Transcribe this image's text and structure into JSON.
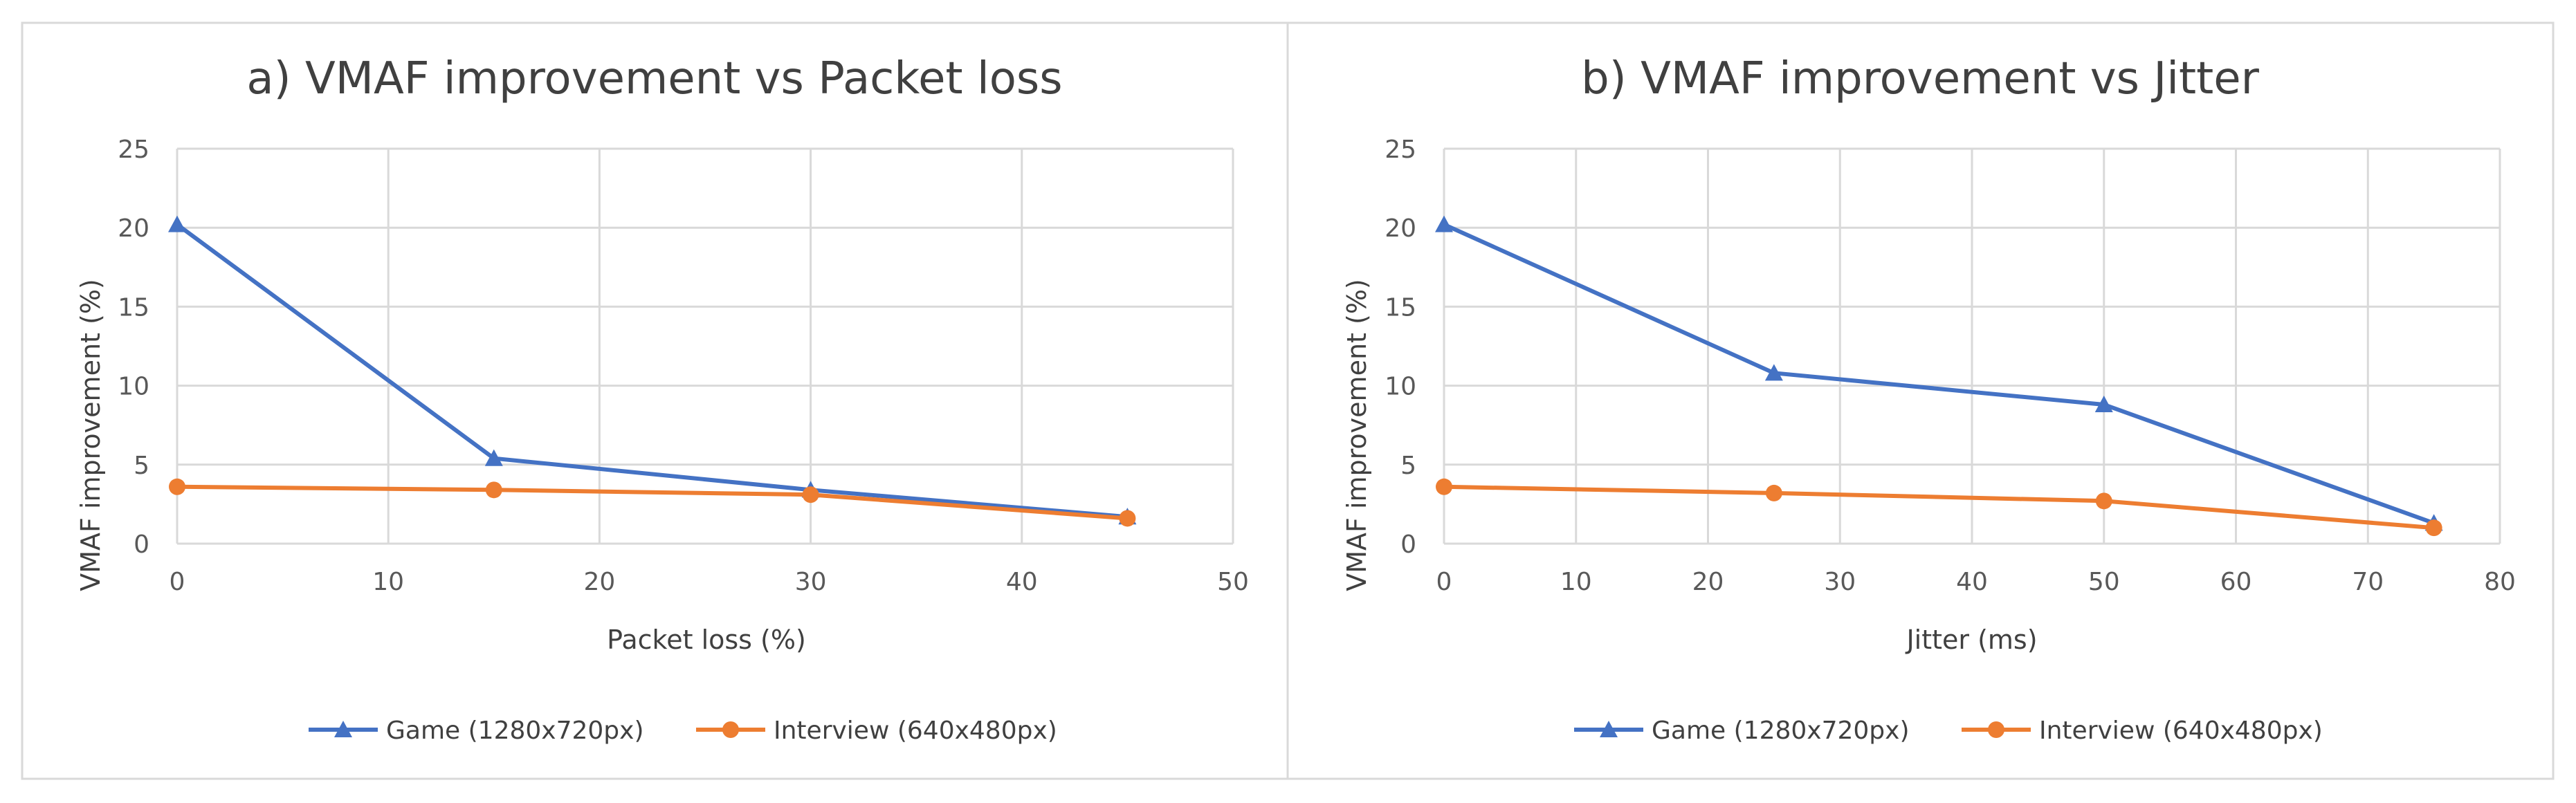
{
  "colors": {
    "game": "#4472C4",
    "interview": "#ED7D31",
    "grid": "#D9D9D9",
    "text": "#404040",
    "tick_text": "#595959"
  },
  "chart_data": [
    {
      "type": "line",
      "title": "a) VMAF improvement vs Packet loss",
      "xlabel": "Packet loss (%)",
      "ylabel": "VMAF improvement (%)",
      "xlim": [
        0,
        50
      ],
      "ylim": [
        0,
        25
      ],
      "xticks": [
        "0",
        "10",
        "20",
        "30",
        "40",
        "50"
      ],
      "yticks": [
        "0",
        "5",
        "10",
        "15",
        "20",
        "25"
      ],
      "grid": true,
      "legend_position": "bottom",
      "series": [
        {
          "name": "Game (1280x720px)",
          "marker": "triangle",
          "color": "#4472C4",
          "x": [
            0,
            15,
            30,
            45
          ],
          "values": [
            20.2,
            5.4,
            3.4,
            1.7
          ]
        },
        {
          "name": "Interview (640x480px)",
          "marker": "circle",
          "color": "#ED7D31",
          "x": [
            0,
            15,
            30,
            45
          ],
          "values": [
            3.6,
            3.4,
            3.1,
            1.6
          ]
        }
      ]
    },
    {
      "type": "line",
      "title": "b) VMAF improvement vs Jitter",
      "xlabel": "Jitter (ms)",
      "ylabel": "VMAF improvement (%)",
      "xlim": [
        0,
        80
      ],
      "ylim": [
        0,
        25
      ],
      "xticks": [
        "0",
        "10",
        "20",
        "30",
        "40",
        "50",
        "60",
        "70",
        "80"
      ],
      "yticks": [
        "0",
        "5",
        "10",
        "15",
        "20",
        "25"
      ],
      "grid": true,
      "legend_position": "bottom",
      "series": [
        {
          "name": "Game (1280x720px)",
          "marker": "triangle",
          "color": "#4472C4",
          "x": [
            0,
            25,
            50,
            75
          ],
          "values": [
            20.2,
            10.8,
            8.8,
            1.3
          ]
        },
        {
          "name": "Interview (640x480px)",
          "marker": "circle",
          "color": "#ED7D31",
          "x": [
            0,
            25,
            50,
            75
          ],
          "values": [
            3.6,
            3.2,
            2.7,
            1.0
          ]
        }
      ]
    }
  ]
}
